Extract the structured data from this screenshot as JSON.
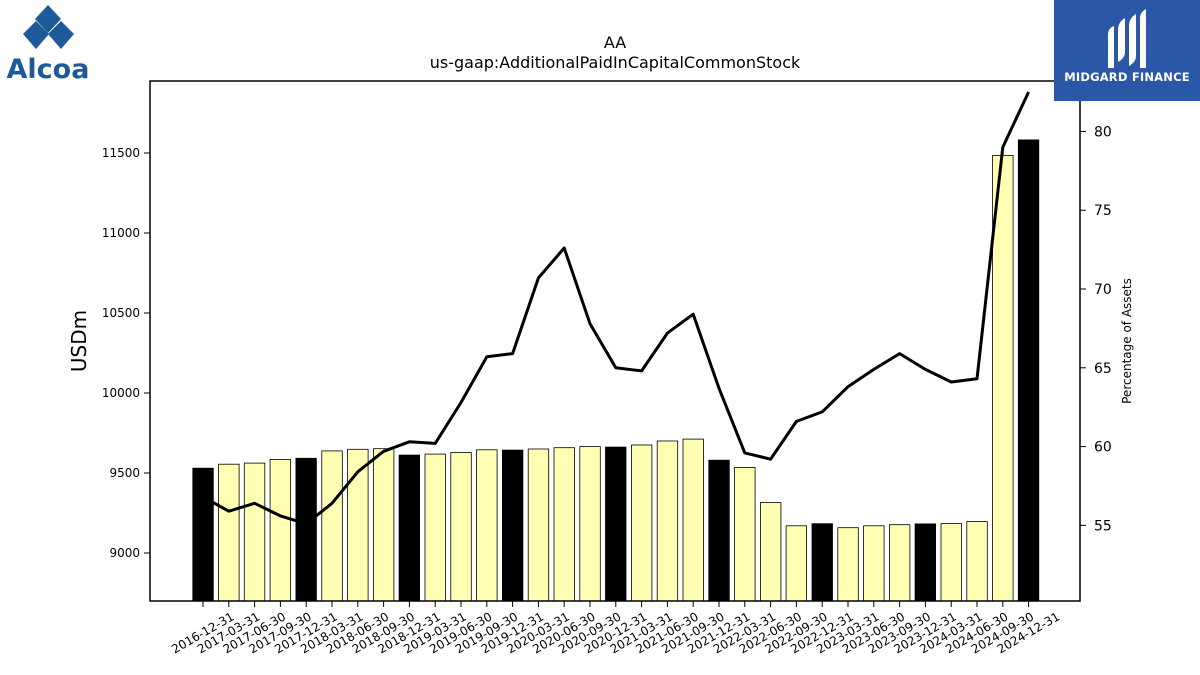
{
  "logos": {
    "left_text": "Alcoa",
    "right_text": "MIDGARD FINANCE",
    "left_color": "#1e5a9a",
    "right_bg": "#2b57a8"
  },
  "chart_data": {
    "type": "bar",
    "title": "AA",
    "subtitle": "us-gaap:AdditionalPaidInCapitalCommonStock",
    "ylabel": "USDm",
    "y2label": "Percentage of Assets",
    "ylim": [
      8700,
      11950
    ],
    "y2lim": [
      50.2,
      83.2
    ],
    "yticks": [
      9000,
      9500,
      10000,
      10500,
      11000,
      11500
    ],
    "y2ticks": [
      55,
      60,
      65,
      70,
      75,
      80
    ],
    "categories": [
      "2016-12-31",
      "2017-03-31",
      "2017-06-30",
      "2017-09-30",
      "2017-12-31",
      "2018-03-31",
      "2018-06-30",
      "2018-09-30",
      "2018-12-31",
      "2019-03-31",
      "2019-06-30",
      "2019-09-30",
      "2019-12-31",
      "2020-03-31",
      "2020-06-30",
      "2020-09-30",
      "2020-12-31",
      "2021-03-31",
      "2021-06-30",
      "2021-09-30",
      "2021-12-31",
      "2022-03-31",
      "2022-06-30",
      "2022-09-30",
      "2022-12-31",
      "2023-03-31",
      "2023-06-30",
      "2023-09-30",
      "2023-12-31",
      "2024-03-31",
      "2024-06-30",
      "2024-09-30",
      "2024-12-31"
    ],
    "values": [
      9530,
      9555,
      9562,
      9585,
      9592,
      9638,
      9648,
      9652,
      9612,
      9618,
      9628,
      9645,
      9643,
      9650,
      9658,
      9665,
      9662,
      9675,
      9700,
      9712,
      9580,
      9535,
      9315,
      9170,
      9183,
      9158,
      9170,
      9177,
      9182,
      9184,
      9196,
      11485,
      11582
    ],
    "bar_highlight": [
      true,
      false,
      false,
      false,
      true,
      false,
      false,
      false,
      true,
      false,
      false,
      false,
      true,
      false,
      false,
      false,
      true,
      false,
      false,
      false,
      true,
      false,
      false,
      false,
      true,
      false,
      false,
      false,
      true,
      false,
      false,
      false,
      true
    ],
    "line_values": [
      56.8,
      55.9,
      56.4,
      55.6,
      55.1,
      56.4,
      58.4,
      59.7,
      60.3,
      60.2,
      62.8,
      65.7,
      65.9,
      70.7,
      72.6,
      67.8,
      65.0,
      64.8,
      67.2,
      68.4,
      63.7,
      59.6,
      59.2,
      61.6,
      62.2,
      63.8,
      64.9,
      65.9,
      64.9,
      64.1,
      64.3,
      79.0,
      82.5
    ],
    "colors": {
      "bar_fill": "#ffffb3",
      "bar_highlight": "#000000",
      "line": "#000000"
    },
    "grid": false
  }
}
